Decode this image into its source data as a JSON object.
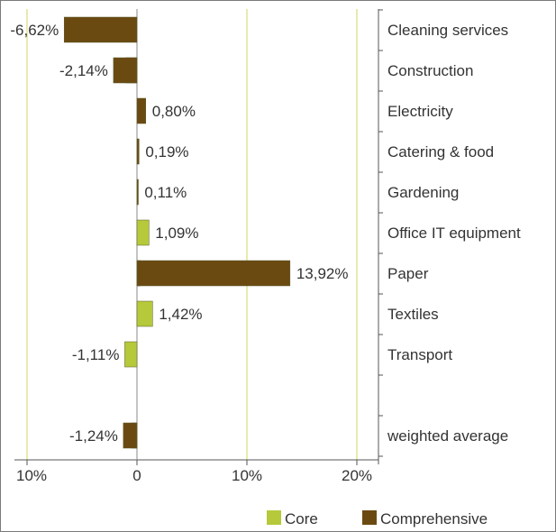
{
  "chart_data": {
    "type": "bar",
    "orientation": "horizontal",
    "categories": [
      "Cleaning services",
      "Construction",
      "Electricity",
      "Catering & food",
      "Gardening",
      "Office IT equipment",
      "Paper",
      "Textiles",
      "Transport",
      "",
      "weighted average"
    ],
    "series": [
      {
        "name": "Core",
        "color": "#b5c93a",
        "values": [
          0,
          -1.0,
          0,
          0,
          0,
          1.09,
          0.3,
          1.42,
          -1.11,
          null,
          -0.5
        ]
      },
      {
        "name": "Comprehensive",
        "color": "#6b4a12",
        "values": [
          -6.62,
          -2.14,
          0.8,
          0.19,
          0.11,
          0,
          13.92,
          0,
          0,
          null,
          -1.24
        ]
      }
    ],
    "data_labels": [
      "-6,62%",
      "-2,14%",
      "0,80%",
      "0,19%",
      "0,11%",
      "1,09%",
      "13,92%",
      "1,42%",
      "-1,11%",
      "",
      "-1,24%"
    ],
    "x_ticks": [
      {
        "value": -10,
        "label": "10%"
      },
      {
        "value": 0,
        "label": "0"
      },
      {
        "value": 10,
        "label": "10%"
      },
      {
        "value": 20,
        "label": "20%"
      }
    ],
    "xlim": [
      -12,
      22
    ],
    "grid": true,
    "gridline_color": "#d8dc7a",
    "legend_position": "bottom-right"
  }
}
